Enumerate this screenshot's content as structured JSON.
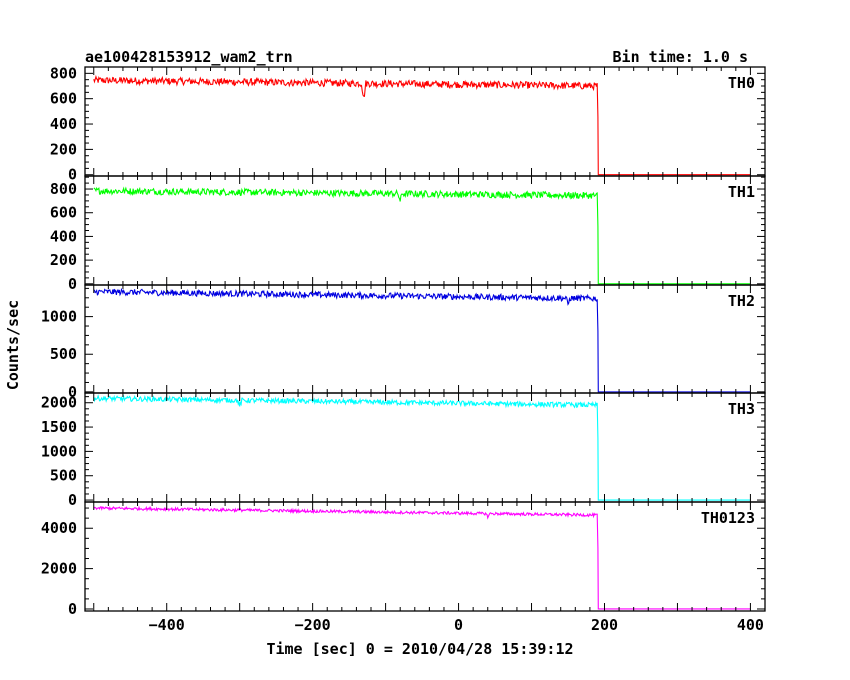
{
  "chart_data": {
    "type": "line",
    "title": "ae100428153912_wam2_trn",
    "bin_label": "Bin time: 1.0 s",
    "xlabel": "Time [sec] 0 = 2010/04/28 15:39:12",
    "ylabel": "Counts/sec",
    "xlim": [
      -512,
      420
    ],
    "x_ticks": [
      -400,
      -200,
      0,
      200,
      400
    ],
    "drop_time": 190,
    "grid": false,
    "panels": [
      {
        "name": "TH0",
        "color": "#ff0000",
        "ylim": [
          -10,
          850
        ],
        "y_ticks": [
          0,
          200,
          400,
          600,
          800
        ],
        "level_start": 745,
        "level_end": 700,
        "noise": 28,
        "dip_at": -130,
        "dip_depth": 120
      },
      {
        "name": "TH1",
        "color": "#00ff00",
        "ylim": [
          -10,
          910
        ],
        "y_ticks": [
          0,
          200,
          400,
          600,
          800
        ],
        "level_start": 785,
        "level_end": 745,
        "noise": 28,
        "dip_at": -80,
        "dip_depth": 60
      },
      {
        "name": "TH2",
        "color": "#0000e0",
        "ylim": [
          -15,
          1420
        ],
        "y_ticks": [
          0,
          500,
          1000
        ],
        "level_start": 1330,
        "level_end": 1240,
        "noise": 40,
        "dip_at": 150,
        "dip_depth": 80
      },
      {
        "name": "TH3",
        "color": "#00ffff",
        "ylim": [
          -40,
          2200
        ],
        "y_ticks": [
          0,
          500,
          1000,
          1500,
          2000
        ],
        "level_start": 2090,
        "level_end": 1950,
        "noise": 50,
        "dip_at": -300,
        "dip_depth": 120
      },
      {
        "name": "TH0123",
        "color": "#ff00ff",
        "ylim": [
          -100,
          5300
        ],
        "y_ticks": [
          0,
          2000,
          4000
        ],
        "level_start": 5000,
        "level_end": 4650,
        "noise": 70,
        "dip_at": 40,
        "dip_depth": 150
      }
    ]
  }
}
